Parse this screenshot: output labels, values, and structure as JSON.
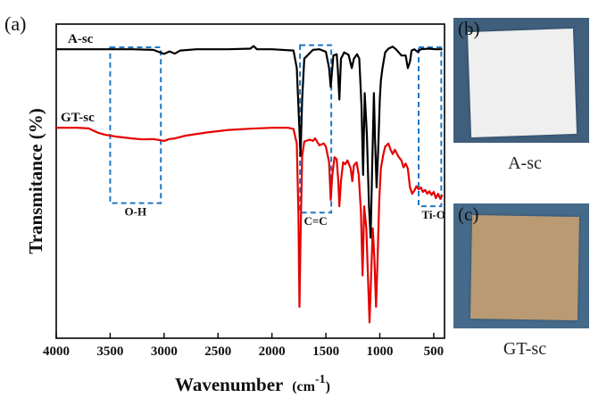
{
  "panels": {
    "a_label": "(a)",
    "b_label": "(b)",
    "c_label": "(c)",
    "b_caption": "A-sc",
    "c_caption": "GT-sc"
  },
  "chart_data": {
    "type": "line",
    "xlabel": "Wavenumber (cm-1)",
    "xlabel_main": "Wavenumber",
    "xlabel_unit_prefix": "(cm",
    "xlabel_unit_sup": "-1",
    "xlabel_unit_suffix": ")",
    "ylabel": "Transmitance (%)",
    "xlim": [
      4000,
      400
    ],
    "x_reversed": true,
    "ylim": [
      0,
      100
    ],
    "y_ticks_shown": false,
    "x_ticks": [
      4000,
      3500,
      3000,
      2500,
      2000,
      1500,
      1000,
      500
    ],
    "grid": false,
    "series": [
      {
        "name": "A-sc",
        "color": "#000000",
        "points": [
          [
            4000,
            92
          ],
          [
            3600,
            92
          ],
          [
            3300,
            92
          ],
          [
            3100,
            91.8
          ],
          [
            3000,
            90.5
          ],
          [
            2950,
            91.3
          ],
          [
            2900,
            90.6
          ],
          [
            2850,
            91.6
          ],
          [
            2700,
            92
          ],
          [
            2400,
            92
          ],
          [
            2200,
            92.2
          ],
          [
            2170,
            93
          ],
          [
            2140,
            92
          ],
          [
            2000,
            92
          ],
          [
            1800,
            91.6
          ],
          [
            1770,
            86
          ],
          [
            1750,
            70
          ],
          [
            1735,
            58
          ],
          [
            1720,
            76
          ],
          [
            1700,
            89
          ],
          [
            1620,
            91.8
          ],
          [
            1560,
            92
          ],
          [
            1500,
            91.2
          ],
          [
            1470,
            86
          ],
          [
            1455,
            80
          ],
          [
            1440,
            86
          ],
          [
            1430,
            90
          ],
          [
            1400,
            90.4
          ],
          [
            1390,
            86
          ],
          [
            1375,
            76
          ],
          [
            1360,
            89
          ],
          [
            1330,
            91
          ],
          [
            1290,
            90.2
          ],
          [
            1260,
            86
          ],
          [
            1240,
            89
          ],
          [
            1210,
            90.4
          ],
          [
            1190,
            89
          ],
          [
            1170,
            74
          ],
          [
            1155,
            52
          ],
          [
            1140,
            78
          ],
          [
            1120,
            65
          ],
          [
            1100,
            42
          ],
          [
            1085,
            32
          ],
          [
            1070,
            55
          ],
          [
            1055,
            78
          ],
          [
            1045,
            64
          ],
          [
            1030,
            48
          ],
          [
            1015,
            60
          ],
          [
            1000,
            76
          ],
          [
            990,
            82
          ],
          [
            975,
            86
          ],
          [
            950,
            91
          ],
          [
            920,
            92.2
          ],
          [
            880,
            92.8
          ],
          [
            850,
            92
          ],
          [
            800,
            90
          ],
          [
            760,
            90
          ],
          [
            740,
            86
          ],
          [
            720,
            88
          ],
          [
            705,
            91.6
          ],
          [
            680,
            92
          ],
          [
            650,
            91.2
          ],
          [
            620,
            92
          ],
          [
            550,
            92.2
          ],
          [
            480,
            92
          ],
          [
            420,
            92
          ]
        ]
      },
      {
        "name": "GT-sc",
        "color": "#e60000",
        "points": [
          [
            4000,
            67
          ],
          [
            3800,
            67
          ],
          [
            3700,
            66.8
          ],
          [
            3620,
            65.5
          ],
          [
            3550,
            64.8
          ],
          [
            3450,
            64.2
          ],
          [
            3300,
            63.6
          ],
          [
            3200,
            63.3
          ],
          [
            3100,
            63.4
          ],
          [
            3000,
            62.8
          ],
          [
            2950,
            63.4
          ],
          [
            2900,
            63.6
          ],
          [
            2800,
            64.5
          ],
          [
            2600,
            65.5
          ],
          [
            2400,
            66.3
          ],
          [
            2200,
            66.7
          ],
          [
            2000,
            67
          ],
          [
            1850,
            67
          ],
          [
            1800,
            66.6
          ],
          [
            1770,
            62
          ],
          [
            1755,
            40
          ],
          [
            1745,
            10
          ],
          [
            1735,
            32
          ],
          [
            1720,
            58
          ],
          [
            1700,
            62.6
          ],
          [
            1650,
            63.2
          ],
          [
            1620,
            62.8
          ],
          [
            1600,
            63.6
          ],
          [
            1560,
            61.4
          ],
          [
            1520,
            62
          ],
          [
            1500,
            61
          ],
          [
            1470,
            56
          ],
          [
            1455,
            44
          ],
          [
            1440,
            52
          ],
          [
            1420,
            57.6
          ],
          [
            1400,
            57
          ],
          [
            1385,
            50
          ],
          [
            1375,
            42
          ],
          [
            1360,
            50
          ],
          [
            1340,
            56
          ],
          [
            1320,
            55.4
          ],
          [
            1300,
            56.6
          ],
          [
            1270,
            54
          ],
          [
            1255,
            50
          ],
          [
            1240,
            55
          ],
          [
            1215,
            56
          ],
          [
            1195,
            52
          ],
          [
            1175,
            40
          ],
          [
            1160,
            20
          ],
          [
            1145,
            42
          ],
          [
            1125,
            35
          ],
          [
            1110,
            20
          ],
          [
            1095,
            5
          ],
          [
            1080,
            20
          ],
          [
            1065,
            35
          ],
          [
            1050,
            25
          ],
          [
            1035,
            10
          ],
          [
            1020,
            26
          ],
          [
            1005,
            44
          ],
          [
            990,
            54
          ],
          [
            970,
            58
          ],
          [
            950,
            61
          ],
          [
            920,
            62
          ],
          [
            900,
            60
          ],
          [
            880,
            58.6
          ],
          [
            860,
            60
          ],
          [
            830,
            58
          ],
          [
            800,
            56.6
          ],
          [
            780,
            54.4
          ],
          [
            760,
            55.6
          ],
          [
            740,
            54
          ],
          [
            720,
            48
          ],
          [
            700,
            46
          ],
          [
            680,
            47
          ],
          [
            660,
            48.4
          ],
          [
            640,
            47.4
          ],
          [
            620,
            48
          ],
          [
            600,
            46.6
          ],
          [
            580,
            47.2
          ],
          [
            560,
            46
          ],
          [
            540,
            46.8
          ],
          [
            520,
            45.6
          ],
          [
            500,
            46.6
          ],
          [
            480,
            44.6
          ],
          [
            460,
            46
          ],
          [
            440,
            44.4
          ],
          [
            420,
            45.6
          ]
        ]
      }
    ],
    "annotations": [
      {
        "label": "O-H",
        "x_range": [
          3500,
          3030
        ],
        "y_range": [
          43,
          92.6
        ],
        "label_pos": "below"
      },
      {
        "label": "C=C",
        "x_range": [
          1740,
          1450
        ],
        "y_range": [
          40,
          93.3
        ],
        "label_pos": "below"
      },
      {
        "label": "Ti-O",
        "x_range": [
          640,
          430
        ],
        "y_range": [
          42,
          92.6
        ],
        "label_pos": "below"
      }
    ],
    "annotation_color": "#1f77c4",
    "curve_labels": [
      {
        "text": "A-sc",
        "series": "A-sc"
      },
      {
        "text": "GT-sc",
        "series": "GT-sc"
      }
    ]
  }
}
